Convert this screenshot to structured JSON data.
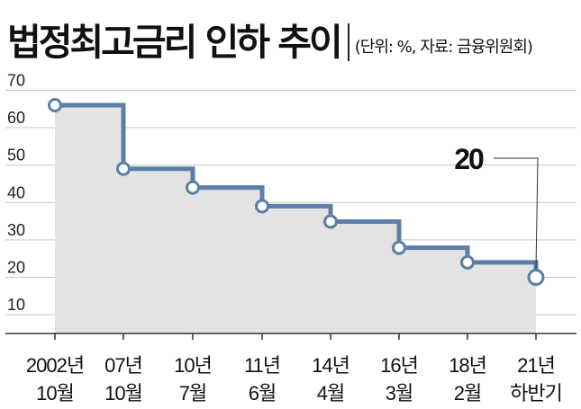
{
  "chart_data": {
    "type": "line",
    "title": "법정최고금리 인하 추이",
    "unit_note": "(단위: %, 자료: 금융위원회)",
    "categories": [
      [
        "2002년",
        "10월"
      ],
      [
        "07년",
        "10월"
      ],
      [
        "10년",
        "7월"
      ],
      [
        "11년",
        "6월"
      ],
      [
        "14년",
        "4월"
      ],
      [
        "16년",
        "3월"
      ],
      [
        "18년",
        "2월"
      ],
      [
        "21년",
        "하반기"
      ]
    ],
    "values": [
      66,
      49,
      44,
      39,
      34.9,
      27.9,
      24,
      20
    ],
    "step": true,
    "y_ticks": [
      10,
      20,
      30,
      40,
      50,
      60,
      70
    ],
    "ylim": [
      5,
      72
    ],
    "annotation": {
      "text": "20",
      "target_index": 7
    },
    "colors": {
      "line": "#5b7fa6",
      "area": "#e3e3e3",
      "grid": "#c7c7c7",
      "marker_fill": "#ffffff"
    },
    "grid": true,
    "legend": "none"
  }
}
